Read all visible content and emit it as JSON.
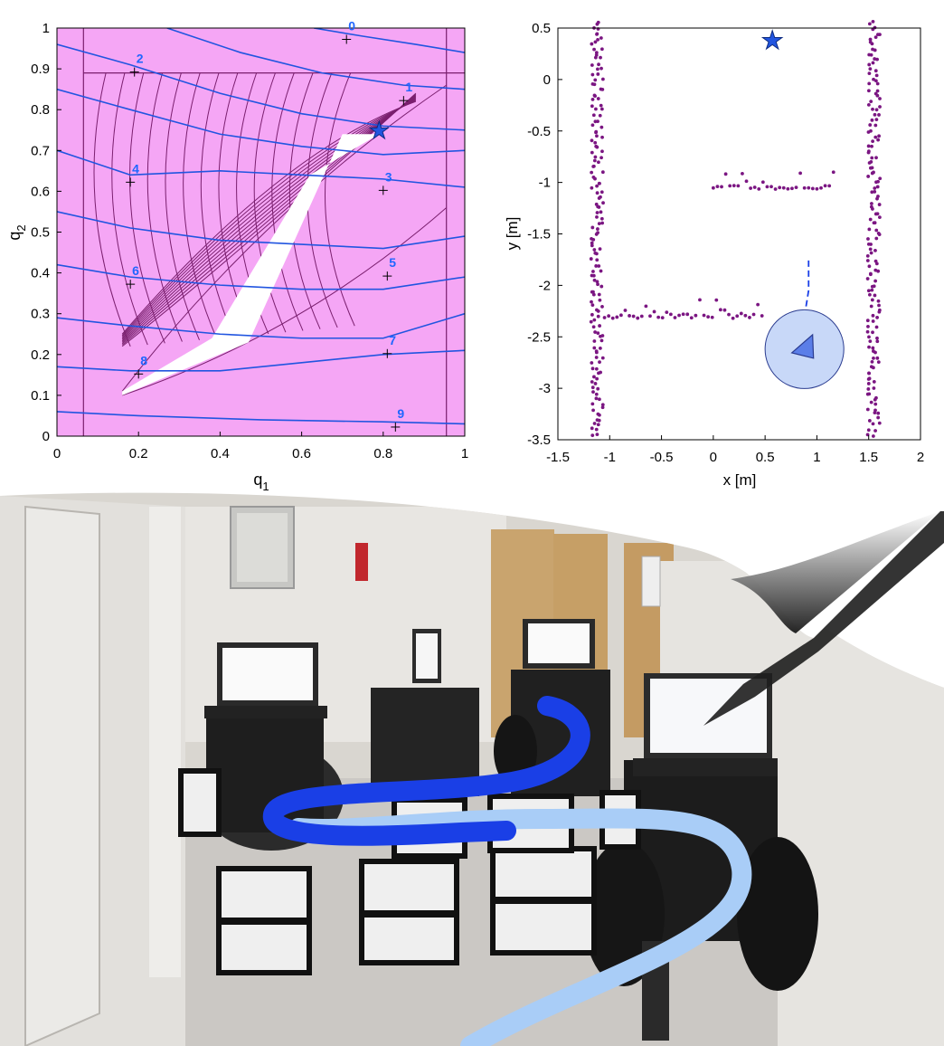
{
  "colors": {
    "config_bg": "#f5a6f5",
    "obstacle": "#7a1f6e",
    "level_set": "#2155e0",
    "label_blue": "#1f66ff",
    "free_space": "#ffffff",
    "scan_points": "#7b1682",
    "robot_fill": "#c8d8f8",
    "robot_edge": "#2a3b8f",
    "path_dark": "#1a3fe6",
    "path_light": "#a9cdf7"
  },
  "chart_data": [
    {
      "type": "line",
      "title": "",
      "xlabel": "q",
      "xlabel_sub": "1",
      "ylabel": "q",
      "ylabel_sub": "2",
      "xlim": [
        0,
        1
      ],
      "ylim": [
        0,
        1
      ],
      "x_ticks": [
        "0",
        "0.2",
        "0.4",
        "0.6",
        "0.8",
        "1"
      ],
      "y_ticks": [
        "0",
        "0.1",
        "0.2",
        "0.3",
        "0.4",
        "0.5",
        "0.6",
        "0.7",
        "0.8",
        "0.9",
        "1"
      ],
      "level_labels": [
        {
          "text": "0",
          "x": 0.71,
          "y": 0.99
        },
        {
          "text": "1",
          "x": 0.85,
          "y": 0.84
        },
        {
          "text": "2",
          "x": 0.19,
          "y": 0.91
        },
        {
          "text": "3",
          "x": 0.8,
          "y": 0.62
        },
        {
          "text": "4",
          "x": 0.18,
          "y": 0.64
        },
        {
          "text": "5",
          "x": 0.81,
          "y": 0.41
        },
        {
          "text": "6",
          "x": 0.18,
          "y": 0.39
        },
        {
          "text": "7",
          "x": 0.81,
          "y": 0.22
        },
        {
          "text": "8",
          "x": 0.2,
          "y": 0.17
        },
        {
          "text": "9",
          "x": 0.83,
          "y": 0.04
        }
      ],
      "level_curves": [
        [
          [
            0.63,
            1.0
          ],
          [
            0.75,
            0.98
          ],
          [
            0.88,
            0.96
          ],
          [
            1.0,
            0.94
          ]
        ],
        [
          [
            0.27,
            1.0
          ],
          [
            0.45,
            0.94
          ],
          [
            0.65,
            0.89
          ],
          [
            0.85,
            0.86
          ],
          [
            1.0,
            0.85
          ]
        ],
        [
          [
            0.0,
            0.96
          ],
          [
            0.18,
            0.91
          ],
          [
            0.4,
            0.84
          ],
          [
            0.6,
            0.79
          ],
          [
            0.8,
            0.76
          ],
          [
            1.0,
            0.75
          ]
        ],
        [
          [
            0.0,
            0.85
          ],
          [
            0.18,
            0.8
          ],
          [
            0.4,
            0.74
          ],
          [
            0.6,
            0.71
          ],
          [
            0.8,
            0.69
          ],
          [
            1.0,
            0.7
          ]
        ],
        [
          [
            0.0,
            0.7
          ],
          [
            0.18,
            0.64
          ],
          [
            0.4,
            0.65
          ],
          [
            0.6,
            0.64
          ],
          [
            0.8,
            0.63
          ],
          [
            1.0,
            0.61
          ]
        ],
        [
          [
            0.0,
            0.55
          ],
          [
            0.18,
            0.51
          ],
          [
            0.4,
            0.48
          ],
          [
            0.6,
            0.47
          ],
          [
            0.8,
            0.46
          ],
          [
            1.0,
            0.49
          ]
        ],
        [
          [
            0.0,
            0.42
          ],
          [
            0.18,
            0.39
          ],
          [
            0.4,
            0.37
          ],
          [
            0.6,
            0.36
          ],
          [
            0.8,
            0.36
          ],
          [
            1.0,
            0.39
          ]
        ],
        [
          [
            0.0,
            0.29
          ],
          [
            0.18,
            0.27
          ],
          [
            0.4,
            0.25
          ],
          [
            0.6,
            0.24
          ],
          [
            0.8,
            0.24
          ],
          [
            1.0,
            0.3
          ]
        ],
        [
          [
            0.0,
            0.17
          ],
          [
            0.18,
            0.16
          ],
          [
            0.4,
            0.16
          ],
          [
            0.6,
            0.18
          ],
          [
            0.8,
            0.2
          ],
          [
            1.0,
            0.21
          ]
        ],
        [
          [
            0.0,
            0.06
          ],
          [
            0.2,
            0.05
          ],
          [
            0.5,
            0.04
          ],
          [
            0.8,
            0.035
          ],
          [
            1.0,
            0.03
          ]
        ]
      ],
      "free_region": [
        [
          0.16,
          0.1
        ],
        [
          0.47,
          0.23
        ],
        [
          0.7,
          0.74
        ],
        [
          0.79,
          0.74
        ],
        [
          0.62,
          0.64
        ],
        [
          0.38,
          0.24
        ],
        [
          0.16,
          0.11
        ]
      ],
      "boundary_lines": {
        "x_left": 0.065,
        "x_right": 0.955,
        "y_top": 0.89
      },
      "goal": {
        "x": 0.79,
        "y": 0.75
      }
    },
    {
      "type": "scatter",
      "title": "",
      "xlabel": "x [m]",
      "ylabel": "y [m]",
      "xlim": [
        -1.5,
        2
      ],
      "ylim": [
        -3.5,
        0.5
      ],
      "x_ticks": [
        "-1.5",
        "-1",
        "-0.5",
        "0",
        "0.5",
        "1",
        "1.5",
        "2"
      ],
      "y_ticks": [
        "0.5",
        "0",
        "-0.5",
        "-1",
        "-1.5",
        "-2",
        "-2.5",
        "-3",
        "-3.5"
      ],
      "walls": [
        {
          "x_center": -1.12,
          "y_from": -3.45,
          "y_to": 0.55
        },
        {
          "x_center": 1.55,
          "y_from": -3.45,
          "y_to": 0.55
        }
      ],
      "obstacle_rows": [
        {
          "x_from": 0.0,
          "x_to": 1.2,
          "y": -1.05
        },
        {
          "x_from": -1.05,
          "x_to": 0.5,
          "y": -2.3
        }
      ],
      "goal": {
        "x": 0.57,
        "y": 0.38
      },
      "robot": {
        "x": 0.88,
        "y": -2.62,
        "radius": 0.38
      },
      "path": [
        [
          0.88,
          -2.3
        ],
        [
          0.92,
          -2.05
        ],
        [
          0.92,
          -1.75
        ]
      ]
    }
  ],
  "photo": {
    "scene": "hallway-robot-photo"
  }
}
